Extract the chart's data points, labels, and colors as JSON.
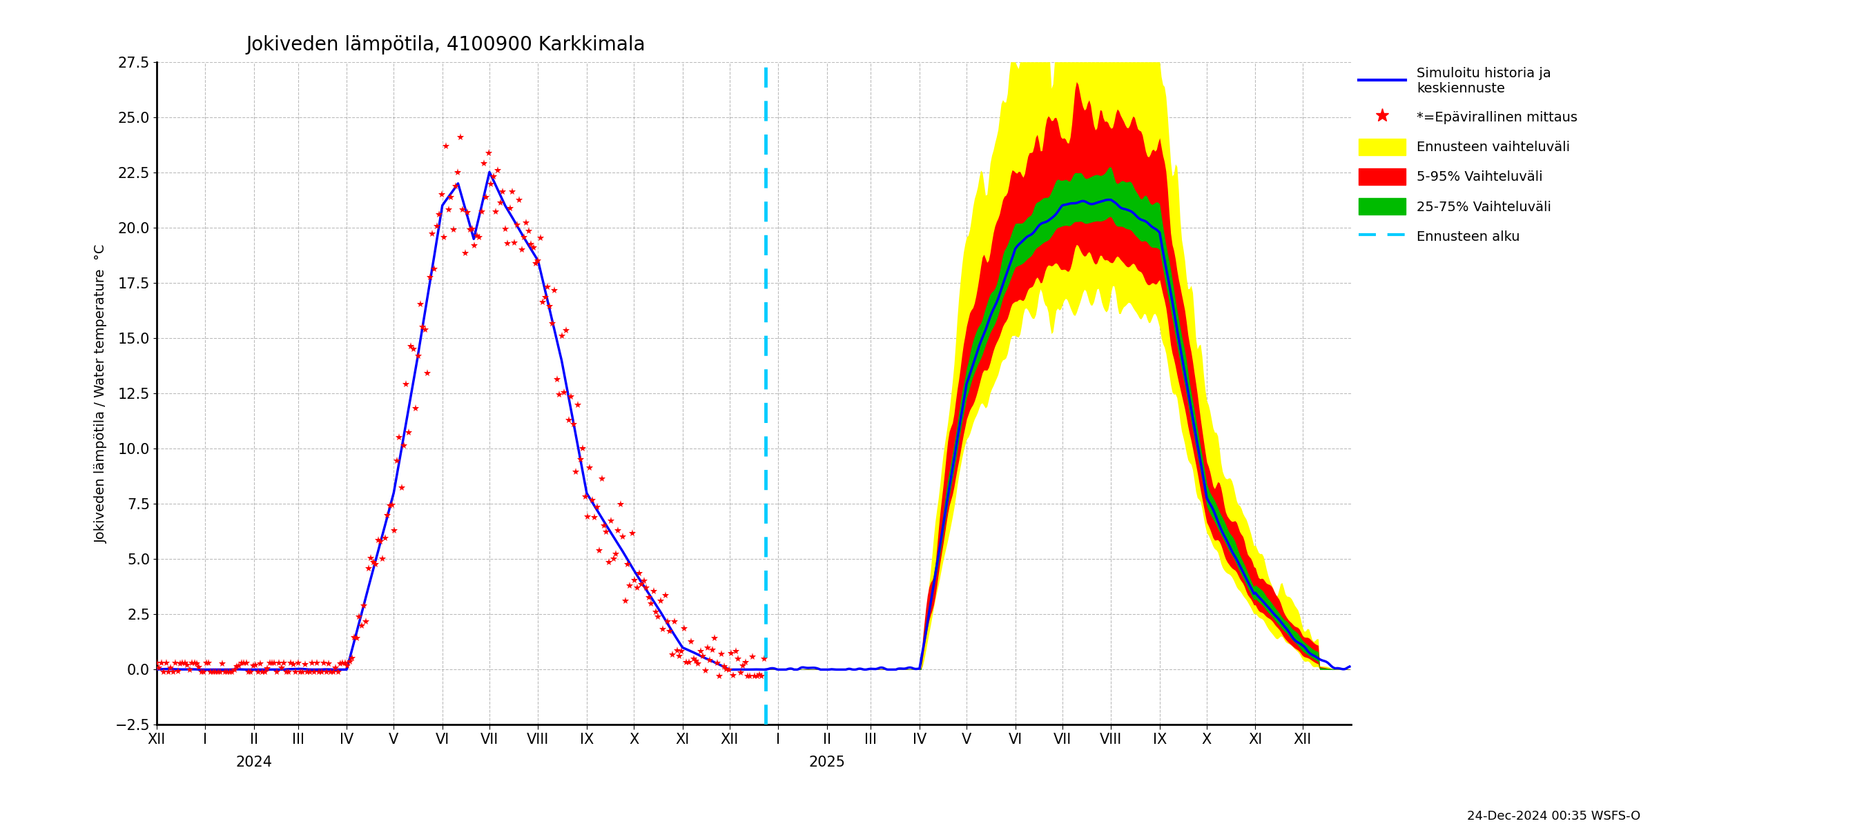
{
  "title": "Jokiveden lämpötila, 4100900 Karkkimala",
  "ylabel": "Jokiveden lämpötila / Water temperature",
  "ylabel_unit": "°C",
  "ylim": [
    -2.5,
    27.5
  ],
  "yticks": [
    -2.5,
    0.0,
    2.5,
    5.0,
    7.5,
    10.0,
    12.5,
    15.0,
    17.5,
    20.0,
    22.5,
    25.0,
    27.5
  ],
  "bg_color": "#ffffff",
  "grid_color": "#aaaaaa",
  "date_label": "24-Dec-2024 00:35 WSFS-O",
  "blue_color": "#0000ff",
  "red_color": "#ff0000",
  "yellow_color": "#ffff00",
  "green_color": "#00bb00",
  "cyan_color": "#00ccff",
  "title_fontsize": 20,
  "tick_fontsize": 15,
  "ylabel_fontsize": 14
}
